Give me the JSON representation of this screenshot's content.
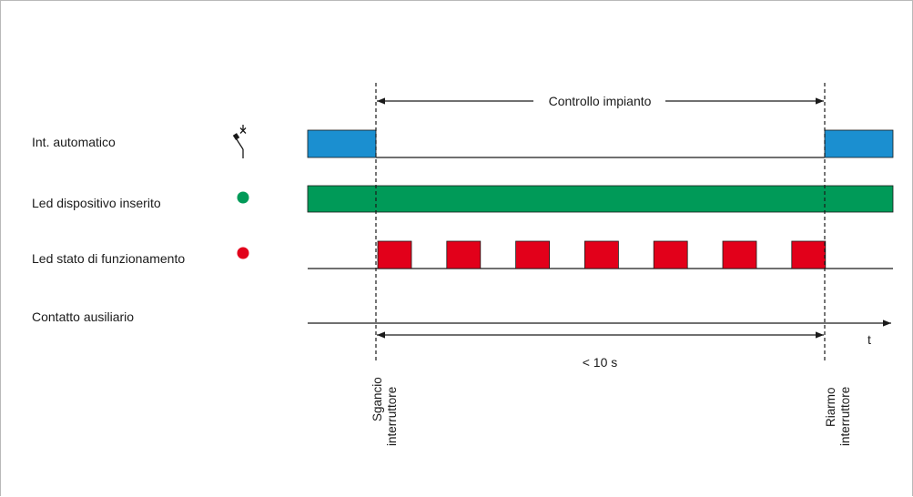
{
  "rows": [
    {
      "label": "Int. automatico"
    },
    {
      "label": "Led dispositivo inserito"
    },
    {
      "label": "Led stato di funzionamento"
    },
    {
      "label": "Contatto ausiliario"
    }
  ],
  "annotations": {
    "top_span": "Controllo impianto",
    "bottom_span": "< 10 s",
    "time_axis": "t",
    "event_left_line1": "Sgancio",
    "event_left_line2": "interruttore",
    "event_right_line1": "Riarmo",
    "event_right_line2": "interruttore"
  },
  "icons": {
    "switch": "breaker-switch-icon",
    "green_led": "green-led-icon",
    "red_led": "red-led-icon"
  },
  "colors": {
    "blue": "#1b8fd0",
    "green": "#009a58",
    "red": "#e2001a",
    "line": "#1a1a1a"
  },
  "red_pulse_count": 7
}
